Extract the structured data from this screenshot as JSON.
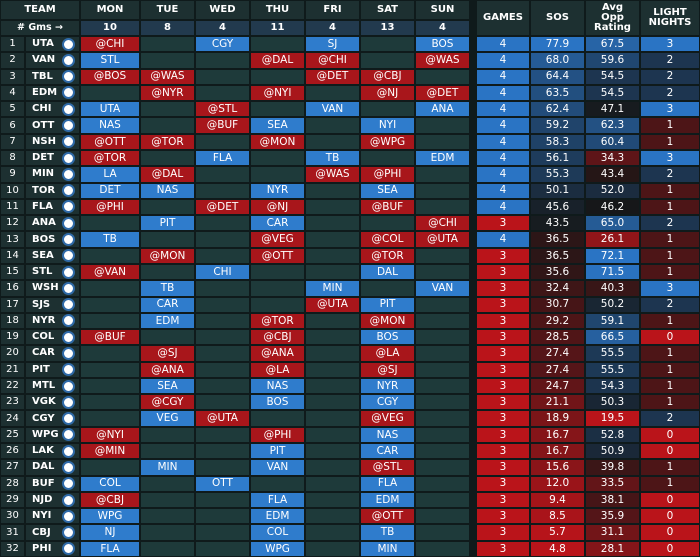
{
  "header": {
    "team": "TEAM",
    "days": [
      "MON",
      "TUE",
      "WED",
      "THU",
      "FRI",
      "SAT",
      "SUN"
    ],
    "games": "GAMES",
    "sos": "SOS",
    "avg_opp_rating": "Avg Opp Rating",
    "light_nights": "LIGHT NIGHTS"
  },
  "games_row": {
    "label": "# Gms →",
    "counts": [
      10,
      8,
      4,
      11,
      4,
      13,
      4
    ]
  },
  "rows": [
    {
      "rank": 1,
      "team": "UTA",
      "days": [
        "@CHI",
        null,
        "CGY",
        null,
        "SJ",
        null,
        "BOS"
      ],
      "games": 4,
      "sos": "77.9",
      "avg_opp_rating": "67.5",
      "light_nights": 3
    },
    {
      "rank": 2,
      "team": "VAN",
      "days": [
        "STL",
        null,
        null,
        "@DAL",
        "@CHI",
        null,
        "@WAS"
      ],
      "games": 4,
      "sos": "68.0",
      "avg_opp_rating": "59.6",
      "light_nights": 2
    },
    {
      "rank": 3,
      "team": "TBL",
      "days": [
        "@BOS",
        "@WAS",
        null,
        null,
        "@DET",
        "@CBJ",
        null
      ],
      "games": 4,
      "sos": "64.4",
      "avg_opp_rating": "54.5",
      "light_nights": 2
    },
    {
      "rank": 4,
      "team": "EDM",
      "days": [
        null,
        "@NYR",
        null,
        "@NYI",
        null,
        "@NJ",
        "@DET"
      ],
      "games": 4,
      "sos": "63.5",
      "avg_opp_rating": "54.5",
      "light_nights": 2
    },
    {
      "rank": 5,
      "team": "CHI",
      "days": [
        "UTA",
        null,
        "@STL",
        null,
        "VAN",
        null,
        "ANA"
      ],
      "games": 4,
      "sos": "62.4",
      "avg_opp_rating": "47.1",
      "light_nights": 3
    },
    {
      "rank": 6,
      "team": "OTT",
      "days": [
        "NAS",
        null,
        "@BUF",
        "SEA",
        null,
        "NYI",
        null
      ],
      "games": 4,
      "sos": "59.2",
      "avg_opp_rating": "62.3",
      "light_nights": 1
    },
    {
      "rank": 7,
      "team": "NSH",
      "days": [
        "@OTT",
        "@TOR",
        null,
        "@MON",
        null,
        "@WPG",
        null
      ],
      "games": 4,
      "sos": "58.3",
      "avg_opp_rating": "60.4",
      "light_nights": 1
    },
    {
      "rank": 8,
      "team": "DET",
      "days": [
        "@TOR",
        null,
        "FLA",
        null,
        "TB",
        null,
        "EDM"
      ],
      "games": 4,
      "sos": "56.1",
      "avg_opp_rating": "34.3",
      "light_nights": 3
    },
    {
      "rank": 9,
      "team": "MIN",
      "days": [
        "LA",
        "@DAL",
        null,
        null,
        "@WAS",
        "@PHI",
        null
      ],
      "games": 4,
      "sos": "55.3",
      "avg_opp_rating": "43.4",
      "light_nights": 2
    },
    {
      "rank": 10,
      "team": "TOR",
      "days": [
        "DET",
        "NAS",
        null,
        "NYR",
        null,
        "SEA",
        null
      ],
      "games": 4,
      "sos": "50.1",
      "avg_opp_rating": "52.0",
      "light_nights": 1
    },
    {
      "rank": 11,
      "team": "FLA",
      "days": [
        "@PHI",
        null,
        "@DET",
        "@NJ",
        null,
        "@BUF",
        null
      ],
      "games": 4,
      "sos": "45.6",
      "avg_opp_rating": "46.2",
      "light_nights": 1
    },
    {
      "rank": 12,
      "team": "ANA",
      "days": [
        null,
        "PIT",
        null,
        "CAR",
        null,
        null,
        "@CHI"
      ],
      "games": 3,
      "sos": "43.5",
      "avg_opp_rating": "65.0",
      "light_nights": 2
    },
    {
      "rank": 13,
      "team": "BOS",
      "days": [
        "TB",
        null,
        null,
        "@VEG",
        null,
        "@COL",
        "@UTA"
      ],
      "games": 4,
      "sos": "36.5",
      "avg_opp_rating": "26.1",
      "light_nights": 1
    },
    {
      "rank": 14,
      "team": "SEA",
      "days": [
        null,
        "@MON",
        null,
        "@OTT",
        null,
        "@TOR",
        null
      ],
      "games": 3,
      "sos": "36.5",
      "avg_opp_rating": "72.1",
      "light_nights": 1
    },
    {
      "rank": 15,
      "team": "STL",
      "days": [
        "@VAN",
        null,
        "CHI",
        null,
        null,
        "DAL",
        null
      ],
      "games": 3,
      "sos": "35.6",
      "avg_opp_rating": "71.5",
      "light_nights": 1
    },
    {
      "rank": 16,
      "team": "WSH",
      "days": [
        null,
        "TB",
        null,
        null,
        "MIN",
        null,
        "VAN"
      ],
      "games": 3,
      "sos": "32.4",
      "avg_opp_rating": "40.3",
      "light_nights": 3
    },
    {
      "rank": 17,
      "team": "SJS",
      "days": [
        null,
        "CAR",
        null,
        null,
        "@UTA",
        "PIT",
        null
      ],
      "games": 3,
      "sos": "30.7",
      "avg_opp_rating": "50.2",
      "light_nights": 2
    },
    {
      "rank": 18,
      "team": "NYR",
      "days": [
        null,
        "EDM",
        null,
        "@TOR",
        null,
        "@MON",
        null
      ],
      "games": 3,
      "sos": "29.2",
      "avg_opp_rating": "59.1",
      "light_nights": 1
    },
    {
      "rank": 19,
      "team": "COL",
      "days": [
        "@BUF",
        null,
        null,
        "@CBJ",
        null,
        "BOS",
        null
      ],
      "games": 3,
      "sos": "28.5",
      "avg_opp_rating": "66.5",
      "light_nights": 0
    },
    {
      "rank": 20,
      "team": "CAR",
      "days": [
        null,
        "@SJ",
        null,
        "@ANA",
        null,
        "@LA",
        null
      ],
      "games": 3,
      "sos": "27.4",
      "avg_opp_rating": "55.5",
      "light_nights": 1
    },
    {
      "rank": 21,
      "team": "PIT",
      "days": [
        null,
        "@ANA",
        null,
        "@LA",
        null,
        "@SJ",
        null
      ],
      "games": 3,
      "sos": "27.4",
      "avg_opp_rating": "55.5",
      "light_nights": 1
    },
    {
      "rank": 22,
      "team": "MTL",
      "days": [
        null,
        "SEA",
        null,
        "NAS",
        null,
        "NYR",
        null
      ],
      "games": 3,
      "sos": "24.7",
      "avg_opp_rating": "54.3",
      "light_nights": 1
    },
    {
      "rank": 23,
      "team": "VGK",
      "days": [
        null,
        "@CGY",
        null,
        "BOS",
        null,
        "CGY",
        null
      ],
      "games": 3,
      "sos": "21.1",
      "avg_opp_rating": "50.3",
      "light_nights": 1
    },
    {
      "rank": 24,
      "team": "CGY",
      "days": [
        null,
        "VEG",
        "@UTA",
        null,
        null,
        "@VEG",
        null
      ],
      "games": 3,
      "sos": "18.9",
      "avg_opp_rating": "19.5",
      "light_nights": 2
    },
    {
      "rank": 25,
      "team": "WPG",
      "days": [
        "@NYI",
        null,
        null,
        "@PHI",
        null,
        "NAS",
        null
      ],
      "games": 3,
      "sos": "16.7",
      "avg_opp_rating": "52.8",
      "light_nights": 0
    },
    {
      "rank": 26,
      "team": "LAK",
      "days": [
        "@MIN",
        null,
        null,
        "PIT",
        null,
        "CAR",
        null
      ],
      "games": 3,
      "sos": "16.7",
      "avg_opp_rating": "50.9",
      "light_nights": 0
    },
    {
      "rank": 27,
      "team": "DAL",
      "days": [
        null,
        "MIN",
        null,
        "VAN",
        null,
        "@STL",
        null
      ],
      "games": 3,
      "sos": "15.6",
      "avg_opp_rating": "39.8",
      "light_nights": 1
    },
    {
      "rank": 28,
      "team": "BUF",
      "days": [
        "COL",
        null,
        "OTT",
        null,
        null,
        "FLA",
        null
      ],
      "games": 3,
      "sos": "12.0",
      "avg_opp_rating": "33.5",
      "light_nights": 1
    },
    {
      "rank": 29,
      "team": "NJD",
      "days": [
        "@CBJ",
        null,
        null,
        "FLA",
        null,
        "EDM",
        null
      ],
      "games": 3,
      "sos": "9.4",
      "avg_opp_rating": "38.1",
      "light_nights": 0
    },
    {
      "rank": 30,
      "team": "NYI",
      "days": [
        "WPG",
        null,
        null,
        "EDM",
        null,
        "@OTT",
        null
      ],
      "games": 3,
      "sos": "8.5",
      "avg_opp_rating": "35.9",
      "light_nights": 0
    },
    {
      "rank": 31,
      "team": "CBJ",
      "days": [
        "NJ",
        null,
        null,
        "COL",
        null,
        "TB",
        null
      ],
      "games": 3,
      "sos": "5.7",
      "avg_opp_rating": "31.1",
      "light_nights": 0
    },
    {
      "rank": 32,
      "team": "PHI",
      "days": [
        "FLA",
        null,
        null,
        "WPG",
        null,
        "MIN",
        null
      ],
      "games": 3,
      "sos": "4.8",
      "avg_opp_rating": "28.1",
      "light_nights": 0
    }
  ]
}
